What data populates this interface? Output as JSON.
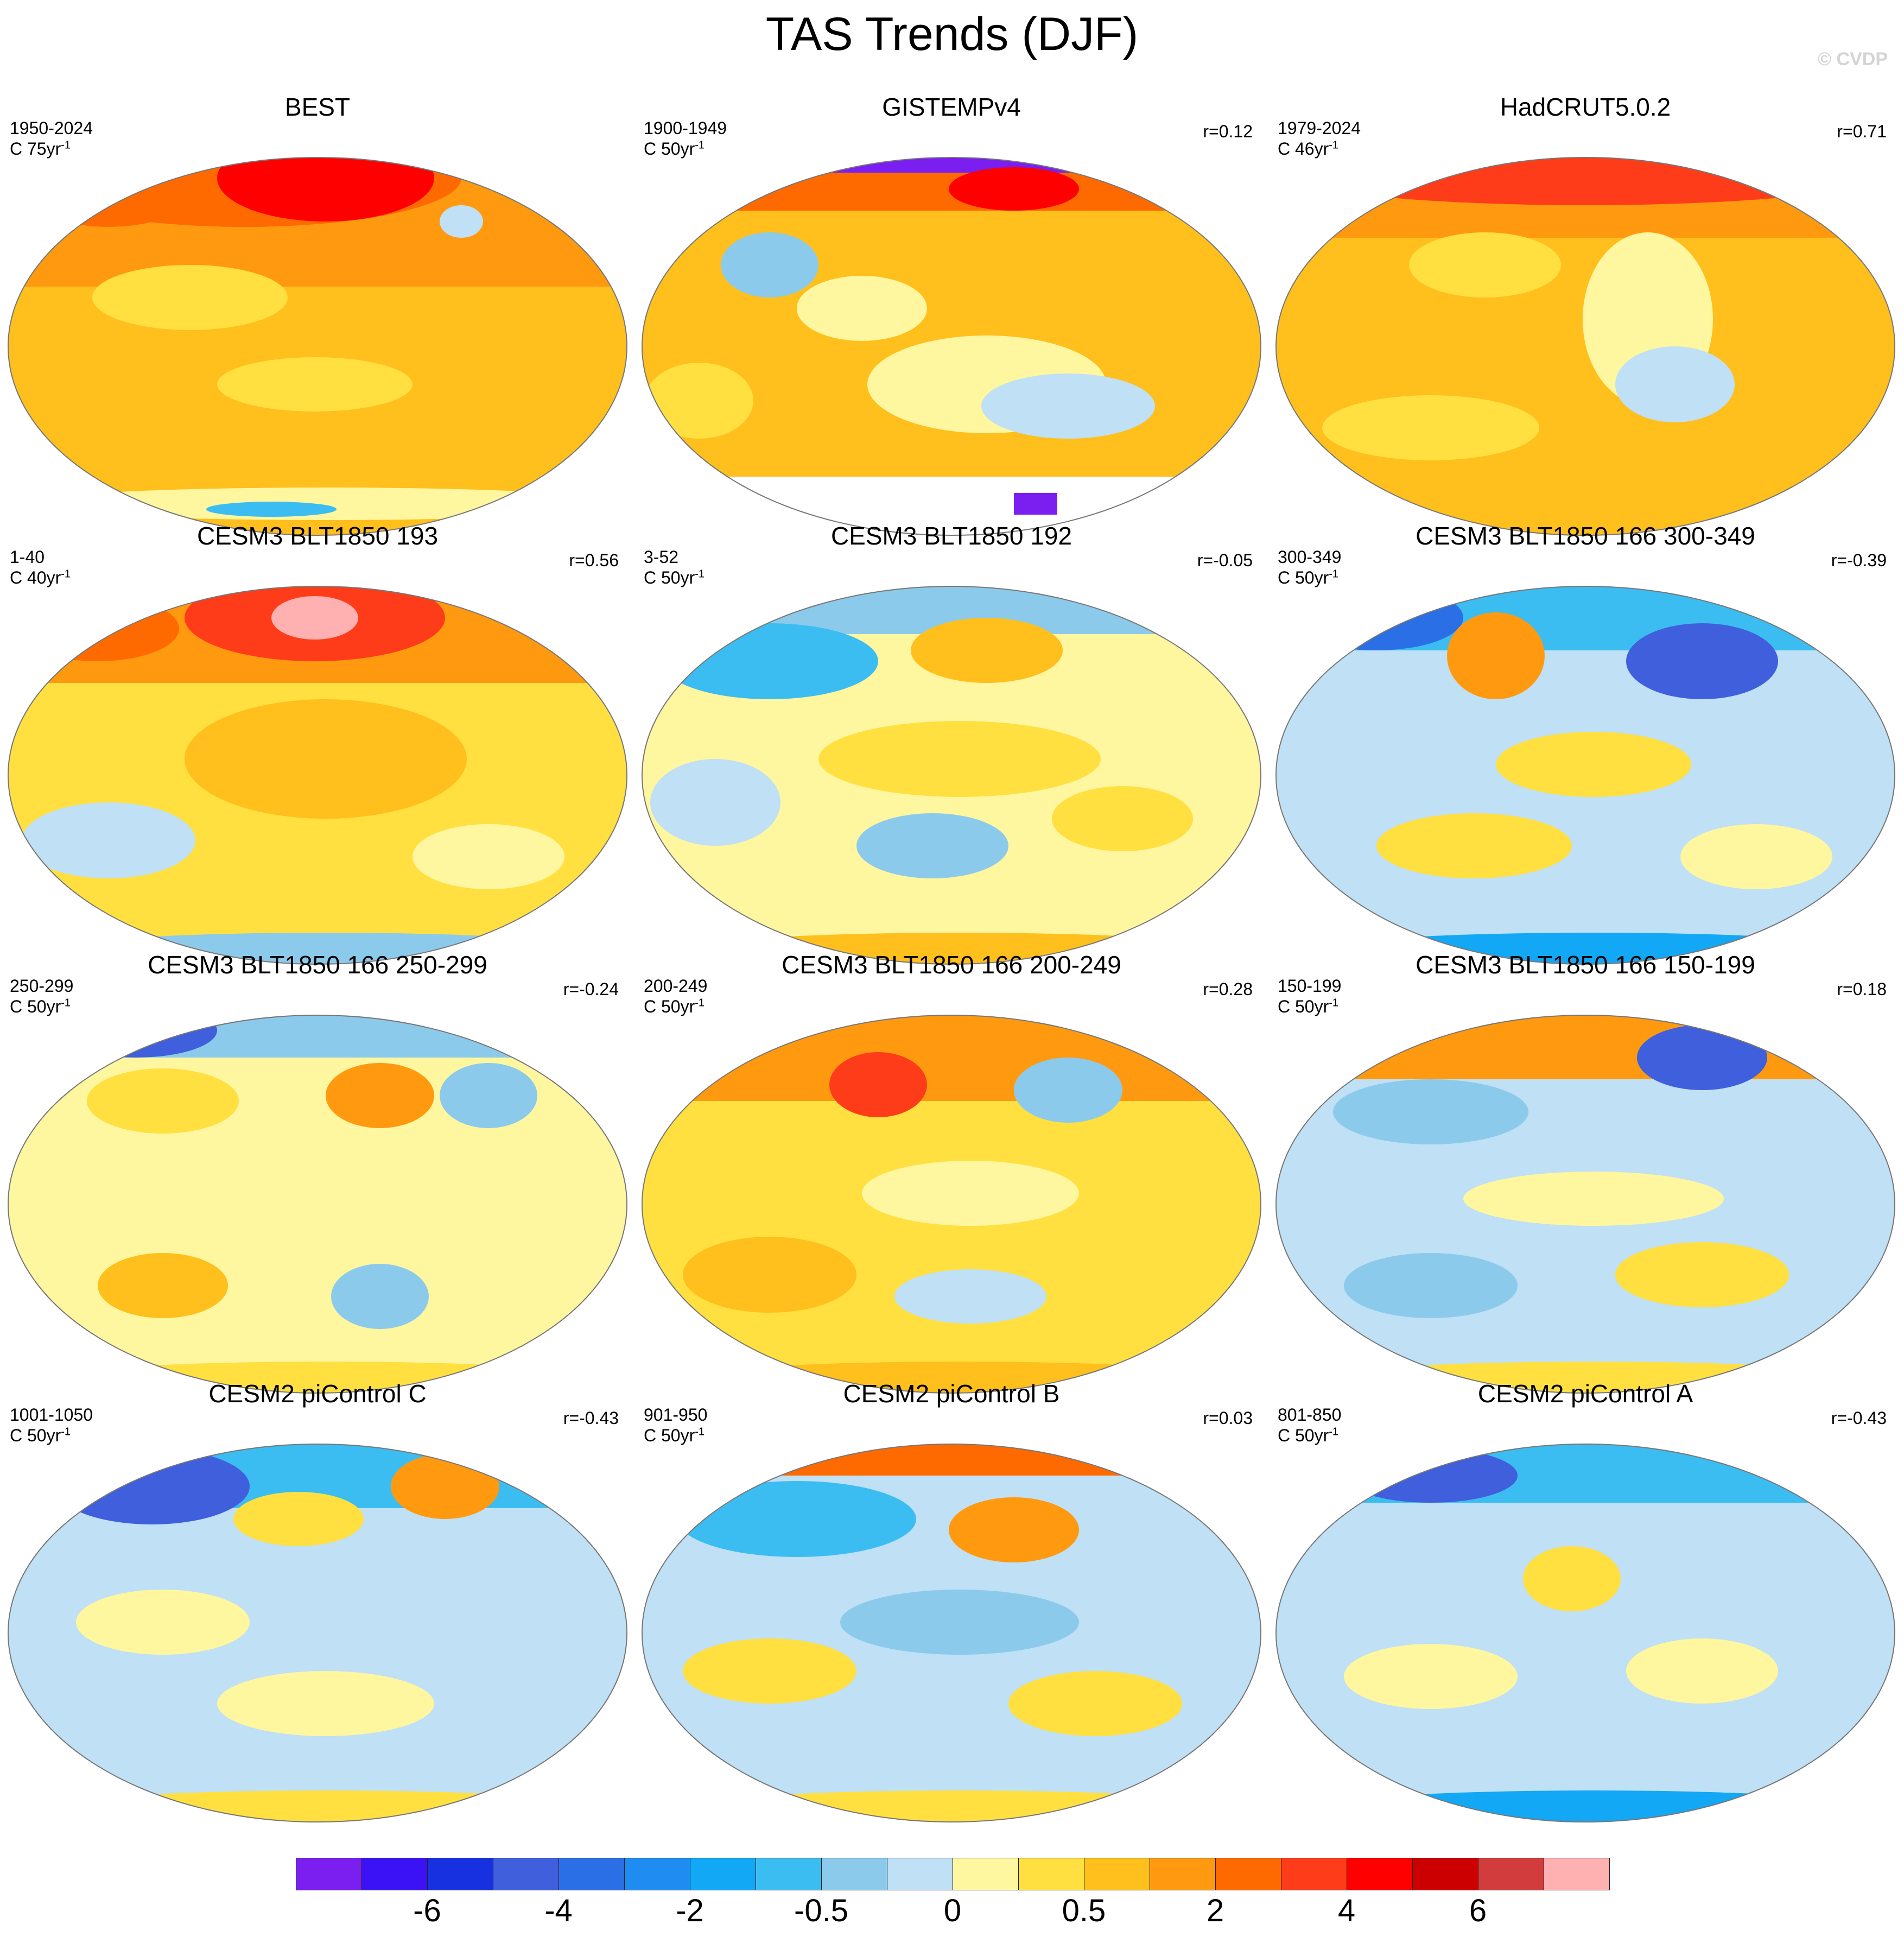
{
  "title": "TAS Trends (DJF)",
  "credit": "© CVDP",
  "colorbar": {
    "colors": [
      "#7a1ff0",
      "#3a12f5",
      "#1730e0",
      "#3f5fdc",
      "#2a6fe6",
      "#1e8cf0",
      "#12a8f5",
      "#3cbdf2",
      "#8ccaec",
      "#bfe0f5",
      "#fff6a0",
      "#ffe040",
      "#ffbf1c",
      "#ff9a10",
      "#ff6a00",
      "#ff3c1a",
      "#ff0000",
      "#cc0000",
      "#d23c3c",
      "#ffb0b0"
    ],
    "labels": [
      "-6",
      "-4",
      "-2",
      "-0.5",
      "0",
      "0.5",
      "2",
      "4",
      "6"
    ]
  },
  "panels": [
    {
      "title": "BEST",
      "period": "1950-2024",
      "scale": "C 75yr",
      "scale_exp": "-1",
      "r": ""
    },
    {
      "title": "GISTEMPv4",
      "period": "1900-1949",
      "scale": "C 50yr",
      "scale_exp": "-1",
      "r": "r=0.12"
    },
    {
      "title": "HadCRUT5.0.2",
      "period": "1979-2024",
      "scale": "C 46yr",
      "scale_exp": "-1",
      "r": "r=0.71"
    },
    {
      "title": "CESM3 BLT1850 193",
      "period": "1-40",
      "scale": "C 40yr",
      "scale_exp": "-1",
      "r": "r=0.56"
    },
    {
      "title": "CESM3 BLT1850 192",
      "period": "3-52",
      "scale": "C 50yr",
      "scale_exp": "-1",
      "r": "r=-0.05"
    },
    {
      "title": "CESM3 BLT1850 166 300-349",
      "period": "300-349",
      "scale": "C 50yr",
      "scale_exp": "-1",
      "r": "r=-0.39"
    },
    {
      "title": "CESM3 BLT1850 166 250-299",
      "period": "250-299",
      "scale": "C 50yr",
      "scale_exp": "-1",
      "r": "r=-0.24"
    },
    {
      "title": "CESM3 BLT1850 166 200-249",
      "period": "200-249",
      "scale": "C 50yr",
      "scale_exp": "-1",
      "r": "r=0.28"
    },
    {
      "title": "CESM3 BLT1850 166 150-199",
      "period": "150-199",
      "scale": "C 50yr",
      "scale_exp": "-1",
      "r": "r=0.18"
    },
    {
      "title": "CESM2 piControl C",
      "period": "1001-1050",
      "scale": "C 50yr",
      "scale_exp": "-1",
      "r": "r=-0.43"
    },
    {
      "title": "CESM2 piControl B",
      "period": "901-950",
      "scale": "C 50yr",
      "scale_exp": "-1",
      "r": "r=0.03"
    },
    {
      "title": "CESM2 piControl A",
      "period": "801-850",
      "scale": "C 50yr",
      "scale_exp": "-1",
      "r": "r=-0.43"
    }
  ]
}
